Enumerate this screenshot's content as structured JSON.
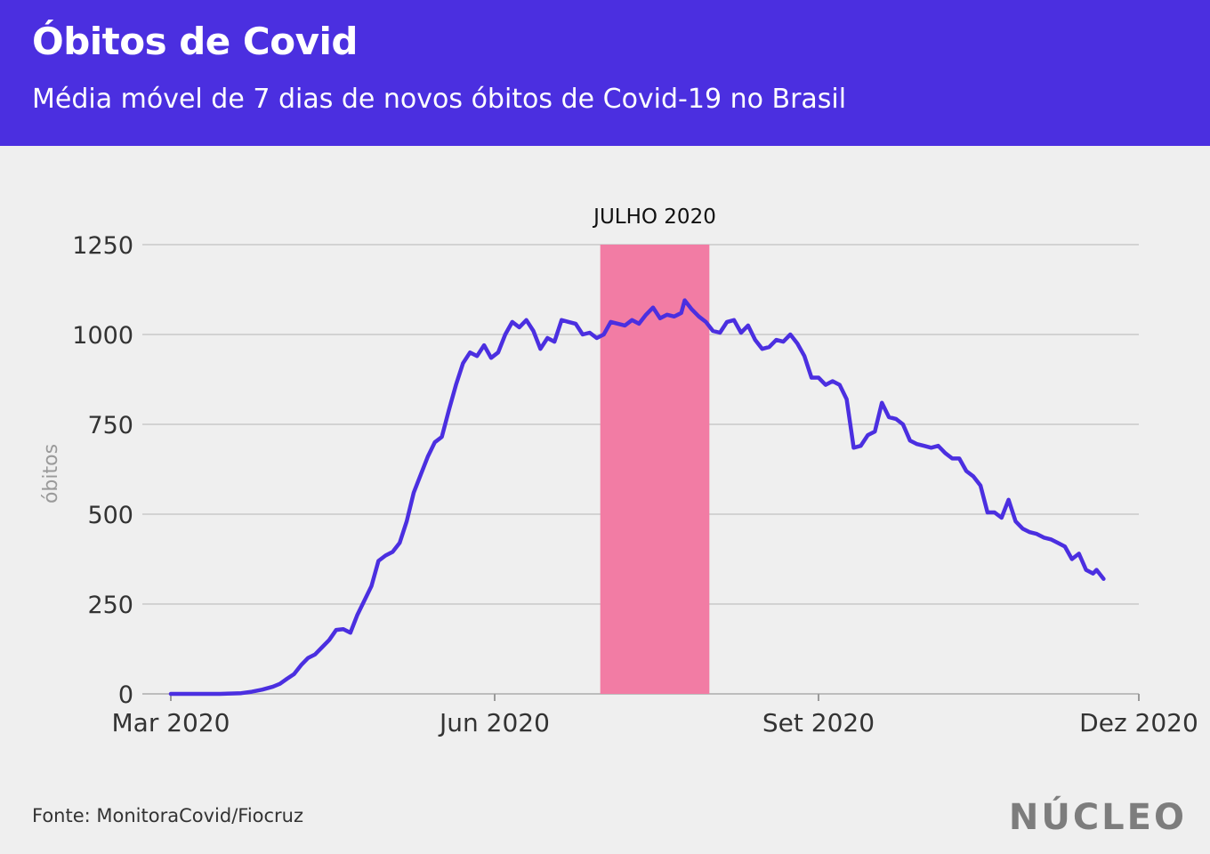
{
  "header": {
    "title": "Óbitos de Covid",
    "subtitle": "Média móvel de 7 dias de novos óbitos de Covid-19 no Brasil"
  },
  "footer": {
    "source": "Fonte: MonitoraCovid/Fiocruz",
    "brand": "NÚCLEO"
  },
  "colors": {
    "header_bg": "#4b2fe0",
    "line": "#4b2fe0",
    "highlight": "#f27ca4",
    "background": "#efefef"
  },
  "chart_data": {
    "type": "line",
    "title": "Óbitos de Covid",
    "subtitle": "Média móvel de 7 dias de novos óbitos de Covid-19 no Brasil",
    "xlabel": "",
    "ylabel": "óbitos",
    "ylim": [
      0,
      1250
    ],
    "xlim": [
      "2020-03-01",
      "2020-12-01"
    ],
    "grid": true,
    "x_ticks": [
      {
        "date": "2020-03-01",
        "label": "Mar 2020"
      },
      {
        "date": "2020-06-01",
        "label": "Jun 2020"
      },
      {
        "date": "2020-09-01",
        "label": "Set 2020"
      },
      {
        "date": "2020-12-01",
        "label": "Dez 2020"
      }
    ],
    "y_ticks": [
      0,
      250,
      500,
      750,
      1000,
      1250
    ],
    "highlight": {
      "label": "JULHO 2020",
      "start": "2020-07-01",
      "end": "2020-08-01"
    },
    "series": [
      {
        "points": [
          [
            "2020-03-01",
            0
          ],
          [
            "2020-03-10",
            0
          ],
          [
            "2020-03-15",
            0
          ],
          [
            "2020-03-18",
            1
          ],
          [
            "2020-03-21",
            2
          ],
          [
            "2020-03-24",
            6
          ],
          [
            "2020-03-27",
            12
          ],
          [
            "2020-03-30",
            20
          ],
          [
            "2020-04-01",
            28
          ],
          [
            "2020-04-03",
            42
          ],
          [
            "2020-04-05",
            55
          ],
          [
            "2020-04-07",
            80
          ],
          [
            "2020-04-09",
            100
          ],
          [
            "2020-04-11",
            110
          ],
          [
            "2020-04-13",
            130
          ],
          [
            "2020-04-15",
            150
          ],
          [
            "2020-04-17",
            178
          ],
          [
            "2020-04-19",
            180
          ],
          [
            "2020-04-21",
            170
          ],
          [
            "2020-04-23",
            220
          ],
          [
            "2020-04-25",
            260
          ],
          [
            "2020-04-27",
            300
          ],
          [
            "2020-04-29",
            370
          ],
          [
            "2020-05-01",
            385
          ],
          [
            "2020-05-03",
            395
          ],
          [
            "2020-05-05",
            420
          ],
          [
            "2020-05-07",
            480
          ],
          [
            "2020-05-09",
            560
          ],
          [
            "2020-05-11",
            610
          ],
          [
            "2020-05-13",
            660
          ],
          [
            "2020-05-15",
            700
          ],
          [
            "2020-05-17",
            715
          ],
          [
            "2020-05-19",
            790
          ],
          [
            "2020-05-21",
            860
          ],
          [
            "2020-05-23",
            920
          ],
          [
            "2020-05-25",
            950
          ],
          [
            "2020-05-27",
            940
          ],
          [
            "2020-05-29",
            970
          ],
          [
            "2020-05-31",
            935
          ],
          [
            "2020-06-02",
            950
          ],
          [
            "2020-06-04",
            1000
          ],
          [
            "2020-06-06",
            1035
          ],
          [
            "2020-06-08",
            1020
          ],
          [
            "2020-06-10",
            1040
          ],
          [
            "2020-06-12",
            1010
          ],
          [
            "2020-06-14",
            960
          ],
          [
            "2020-06-16",
            990
          ],
          [
            "2020-06-18",
            980
          ],
          [
            "2020-06-20",
            1040
          ],
          [
            "2020-06-22",
            1035
          ],
          [
            "2020-06-24",
            1030
          ],
          [
            "2020-06-26",
            1000
          ],
          [
            "2020-06-28",
            1005
          ],
          [
            "2020-06-30",
            990
          ],
          [
            "2020-07-02",
            1000
          ],
          [
            "2020-07-04",
            1035
          ],
          [
            "2020-07-06",
            1030
          ],
          [
            "2020-07-08",
            1025
          ],
          [
            "2020-07-10",
            1040
          ],
          [
            "2020-07-12",
            1030
          ],
          [
            "2020-07-14",
            1055
          ],
          [
            "2020-07-16",
            1075
          ],
          [
            "2020-07-18",
            1045
          ],
          [
            "2020-07-20",
            1055
          ],
          [
            "2020-07-22",
            1050
          ],
          [
            "2020-07-24",
            1060
          ],
          [
            "2020-07-25",
            1095
          ],
          [
            "2020-07-27",
            1070
          ],
          [
            "2020-07-29",
            1050
          ],
          [
            "2020-07-31",
            1035
          ],
          [
            "2020-08-02",
            1010
          ],
          [
            "2020-08-04",
            1005
          ],
          [
            "2020-08-06",
            1035
          ],
          [
            "2020-08-08",
            1040
          ],
          [
            "2020-08-10",
            1005
          ],
          [
            "2020-08-12",
            1025
          ],
          [
            "2020-08-14",
            985
          ],
          [
            "2020-08-16",
            960
          ],
          [
            "2020-08-18",
            965
          ],
          [
            "2020-08-20",
            985
          ],
          [
            "2020-08-22",
            980
          ],
          [
            "2020-08-24",
            1000
          ],
          [
            "2020-08-26",
            975
          ],
          [
            "2020-08-28",
            940
          ],
          [
            "2020-08-30",
            880
          ],
          [
            "2020-09-01",
            880
          ],
          [
            "2020-09-03",
            860
          ],
          [
            "2020-09-05",
            870
          ],
          [
            "2020-09-07",
            860
          ],
          [
            "2020-09-09",
            820
          ],
          [
            "2020-09-11",
            685
          ],
          [
            "2020-09-13",
            690
          ],
          [
            "2020-09-15",
            720
          ],
          [
            "2020-09-17",
            730
          ],
          [
            "2020-09-19",
            810
          ],
          [
            "2020-09-21",
            770
          ],
          [
            "2020-09-23",
            765
          ],
          [
            "2020-09-25",
            750
          ],
          [
            "2020-09-27",
            705
          ],
          [
            "2020-09-29",
            695
          ],
          [
            "2020-10-01",
            690
          ],
          [
            "2020-10-03",
            685
          ],
          [
            "2020-10-05",
            690
          ],
          [
            "2020-10-07",
            670
          ],
          [
            "2020-10-09",
            655
          ],
          [
            "2020-10-11",
            655
          ],
          [
            "2020-10-13",
            620
          ],
          [
            "2020-10-15",
            605
          ],
          [
            "2020-10-17",
            580
          ],
          [
            "2020-10-19",
            505
          ],
          [
            "2020-10-21",
            505
          ],
          [
            "2020-10-23",
            490
          ],
          [
            "2020-10-25",
            540
          ],
          [
            "2020-10-27",
            480
          ],
          [
            "2020-10-29",
            460
          ],
          [
            "2020-10-31",
            450
          ],
          [
            "2020-11-02",
            445
          ],
          [
            "2020-11-04",
            435
          ],
          [
            "2020-11-06",
            430
          ],
          [
            "2020-11-08",
            420
          ],
          [
            "2020-11-10",
            410
          ],
          [
            "2020-11-12",
            375
          ],
          [
            "2020-11-14",
            390
          ],
          [
            "2020-11-16",
            345
          ],
          [
            "2020-11-18",
            335
          ],
          [
            "2020-11-19",
            345
          ],
          [
            "2020-11-21",
            320
          ]
        ]
      }
    ]
  }
}
